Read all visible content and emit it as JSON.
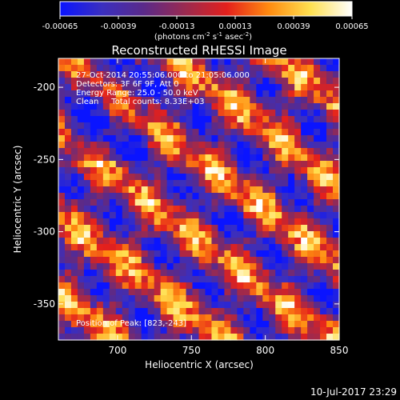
{
  "chart_data": {
    "type": "heatmap",
    "title": "Reconstructed RHESSI Image",
    "xlabel": "Heliocentric X (arcsec)",
    "ylabel": "Heliocentric Y (arcsec)",
    "xlim": [
      660,
      850
    ],
    "ylim": [
      -375,
      -180
    ],
    "xticks": [
      700,
      750,
      800,
      850
    ],
    "xtick_labels": [
      "700",
      "750",
      "800",
      "850"
    ],
    "yticks": [
      -200,
      -250,
      -300,
      -350
    ],
    "ytick_labels": [
      "-200",
      "-250",
      "-300",
      "-350"
    ],
    "colorbar": {
      "range": [
        -0.00065,
        0.00065
      ],
      "ticks": [
        -0.00065,
        -0.00039,
        -0.00013,
        0.00013,
        0.00039,
        0.00065
      ],
      "tick_labels": [
        "-0.00065",
        "-0.00039",
        "-0.00013",
        "0.00013",
        "0.00039",
        "0.00065"
      ],
      "label_main": "(photons cm",
      "label_exp1": "-2",
      "label_mid1": " s",
      "label_exp2": "-1",
      "label_mid2": " asec",
      "label_exp3": "-2",
      "label_end": ")",
      "colors": [
        "#0a14ff",
        "#3a2fc0",
        "#5a2a8a",
        "#9a2a50",
        "#e4201c",
        "#ff8a10",
        "#ffe050",
        "#ffffff"
      ]
    },
    "grid": false,
    "pattern": "diagonal bands of bright (yellow/white) emission running lower-left to upper-right over purple background; blue negative residuals scattered"
  },
  "annotations": {
    "time_range": "27-Oct-2014 20:55:06.000 to 21:05:06.000",
    "detectors": "Detectors: 3F 6F 9F, Att 0",
    "energy": "Energy Range: 25.0 - 50.0 keV",
    "clean": "Clean     Total counts: 8.33E+03",
    "peak": "Position of Peak: [823,-243]"
  },
  "footer": {
    "timestamp": "10-Jul-2017 23:29"
  }
}
